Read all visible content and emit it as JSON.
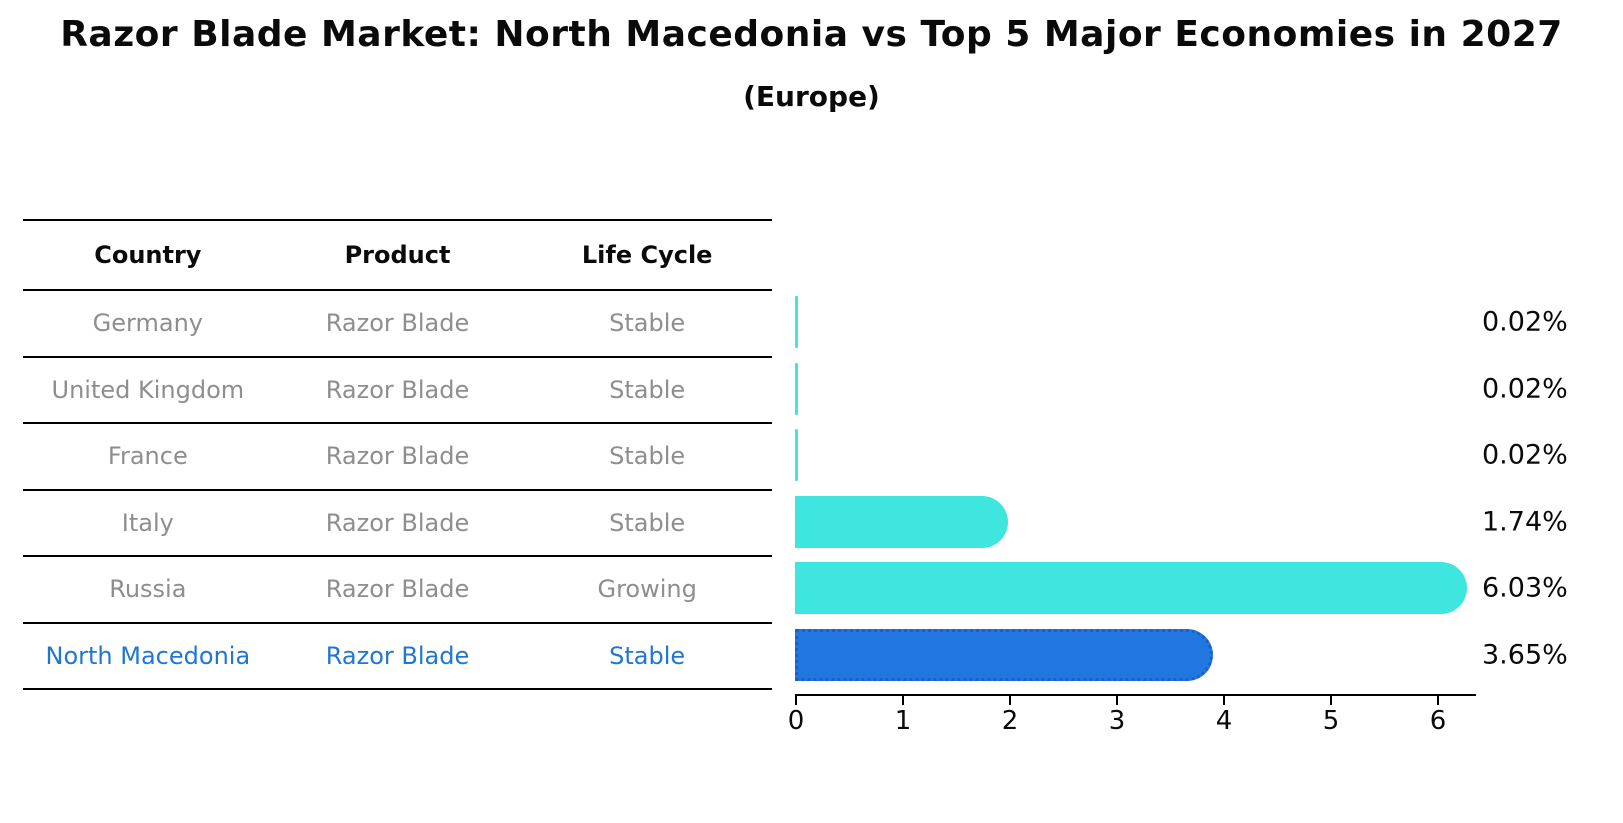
{
  "title": "Razor Blade Market: North Macedonia vs Top 5 Major Economies in 2027",
  "subtitle": "(Europe)",
  "table": {
    "headers": [
      "Country",
      "Product",
      "Life Cycle"
    ],
    "rows": [
      {
        "cells": [
          "Germany",
          "Razor Blade",
          "Stable"
        ],
        "highlight": false
      },
      {
        "cells": [
          "United Kingdom",
          "Razor Blade",
          "Stable"
        ],
        "highlight": false
      },
      {
        "cells": [
          "France",
          "Razor Blade",
          "Stable"
        ],
        "highlight": false
      },
      {
        "cells": [
          "Italy",
          "Razor Blade",
          "Stable"
        ],
        "highlight": false
      },
      {
        "cells": [
          "Russia",
          "Razor Blade",
          "Growing"
        ],
        "highlight": false
      },
      {
        "cells": [
          "North Macedonia",
          "Razor Blade",
          "Stable"
        ],
        "highlight": true
      }
    ]
  },
  "chart_data": {
    "type": "bar",
    "orientation": "horizontal",
    "categories": [
      "Germany",
      "United Kingdom",
      "France",
      "Italy",
      "Russia",
      "North Macedonia"
    ],
    "values": [
      0.02,
      0.02,
      0.02,
      1.74,
      6.03,
      3.65
    ],
    "value_labels": [
      "0.02%",
      "0.02%",
      "0.02%",
      "1.74%",
      "6.03%",
      "3.65%"
    ],
    "highlight_index": 5,
    "xticks": [
      "0",
      "1",
      "2",
      "3",
      "4",
      "5",
      "6"
    ],
    "xlim": [
      0,
      6.4
    ],
    "grid": false,
    "legend": "none",
    "bar_color": "#3fe5df",
    "highlight_bar_color": "#2176e0",
    "highlight_text_color": "#2176d2",
    "row_text_color": "#8e8e8e",
    "axis_color": "#000000"
  }
}
